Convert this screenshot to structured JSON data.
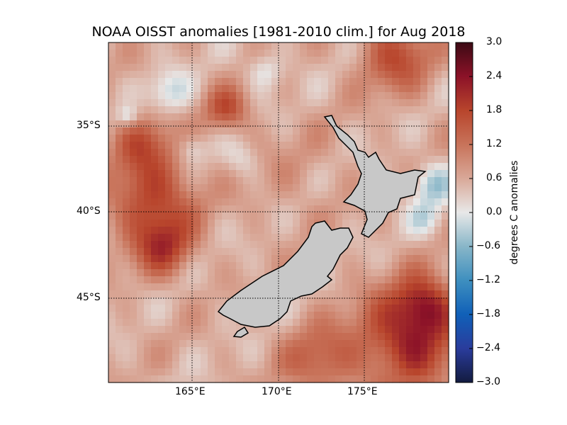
{
  "title": "NOAA OISST anomalies [1981-2010 clim.] for Aug 2018",
  "map": {
    "region": "New Zealand",
    "lon_range": [
      160,
      180
    ],
    "lat_range": [
      -50,
      -30
    ],
    "lon_ticks": [
      "165°E",
      "170°E",
      "175°E"
    ],
    "lat_ticks": [
      "35°S",
      "40°S",
      "45°S"
    ],
    "gridlines": true,
    "land_color": "#c8c8c8",
    "coastline_color": "#000000"
  },
  "colorbar": {
    "label": "degrees C anomalies",
    "range": [
      -3.0,
      3.0
    ],
    "ticks": [
      "3.0",
      "2.4",
      "1.8",
      "1.2",
      "0.6",
      "0.0",
      "−0.6",
      "−1.2",
      "−1.8",
      "−2.4",
      "−3.0"
    ],
    "colors": [
      "#131b3f",
      "#2a3c9c",
      "#1060b8",
      "#3e8fbf",
      "#88b6c8",
      "#e8e8e8",
      "#d9a898",
      "#c8735a",
      "#b8452c",
      "#8c1228",
      "#3c0a14"
    ]
  }
}
